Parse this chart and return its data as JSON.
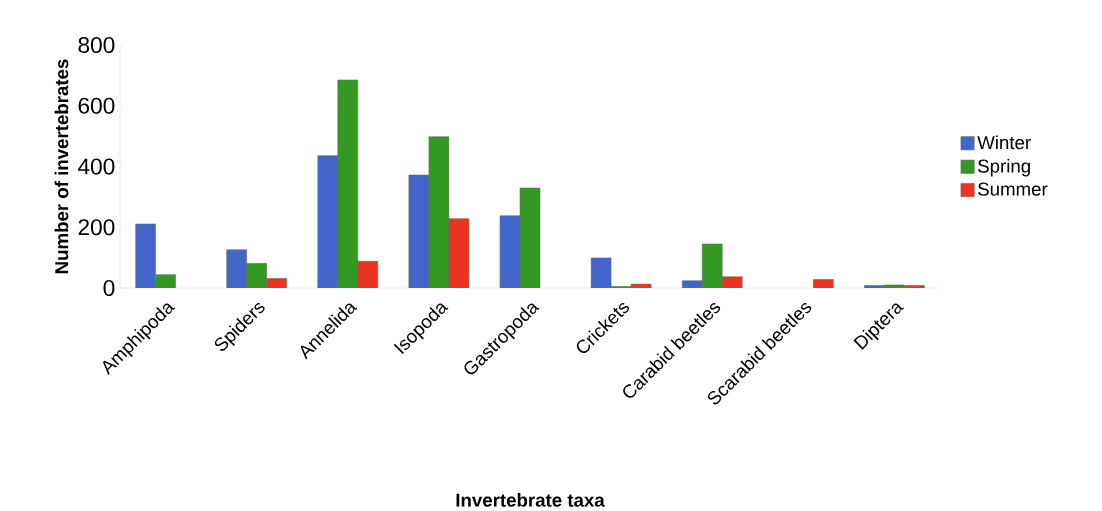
{
  "chart_data": {
    "type": "bar",
    "xlabel": "Invertebrate taxa",
    "ylabel": "Number of invertebrates",
    "categories": [
      "Amphipoda",
      "Spiders",
      "Annelida",
      "Isopoda",
      "Gastropoda",
      "Crickets",
      "Carabid beetles",
      "Scarabid beetles",
      "Diptera"
    ],
    "series": [
      {
        "name": "Winter",
        "color": "#4466cc",
        "values": [
          211,
          126,
          436,
          372,
          238,
          99,
          24,
          null,
          8
        ]
      },
      {
        "name": "Spring",
        "color": "#339922",
        "values": [
          44,
          81,
          685,
          498,
          329,
          5,
          145,
          null,
          10
        ]
      },
      {
        "name": "Summer",
        "color": "#ee3322",
        "values": [
          null,
          31,
          88,
          229,
          null,
          13,
          37,
          28,
          8
        ]
      }
    ],
    "ylim": [
      0,
      800
    ],
    "yticks": [
      0,
      200,
      400,
      600,
      800
    ],
    "legend": "right"
  }
}
